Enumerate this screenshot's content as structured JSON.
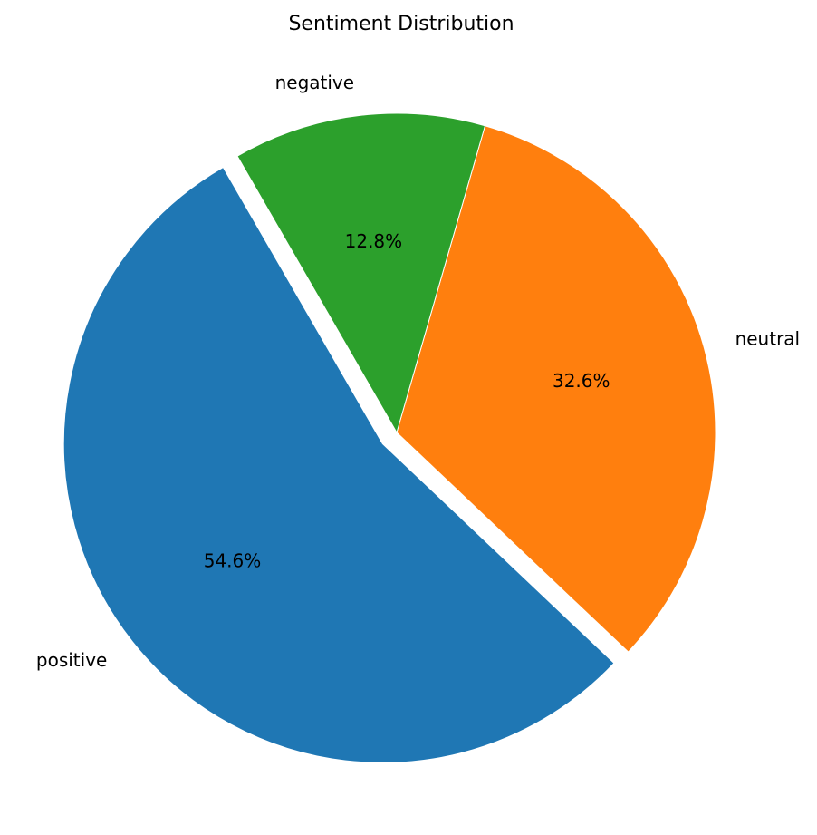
{
  "chart_data": {
    "type": "pie",
    "title": "Sentiment Distribution",
    "slices": [
      {
        "label": "positive",
        "value": 54.6,
        "pct_label": "54.6%",
        "color": "#1f77b4",
        "exploded": true
      },
      {
        "label": "neutral",
        "value": 32.6,
        "pct_label": "32.6%",
        "color": "#ff7f0e",
        "exploded": false
      },
      {
        "label": "negative",
        "value": 12.8,
        "pct_label": "12.8%",
        "color": "#2ca02c",
        "exploded": false
      }
    ]
  }
}
